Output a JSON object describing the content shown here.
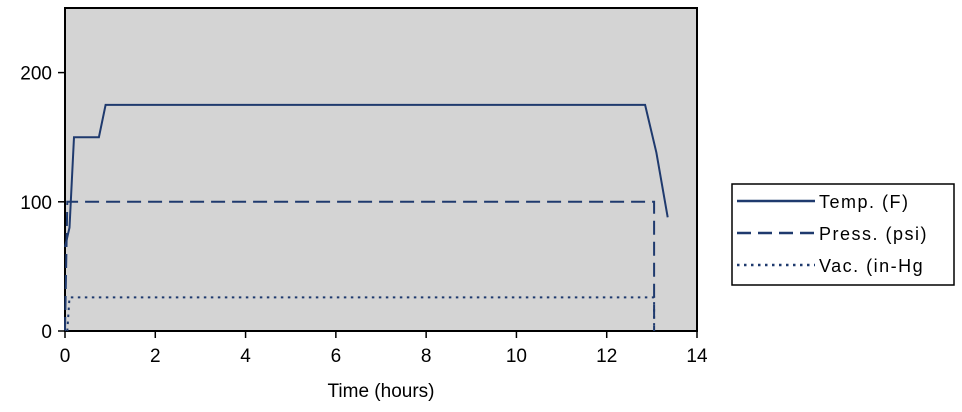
{
  "chart_data": {
    "type": "line",
    "title": "",
    "xlabel": "Time (hours)",
    "ylabel": "",
    "xlim": [
      0,
      14
    ],
    "ylim": [
      0,
      250
    ],
    "xticks": [
      0,
      2,
      4,
      6,
      8,
      10,
      12,
      14
    ],
    "yticks": [
      0,
      100,
      200
    ],
    "x_tick_labels": [
      "0",
      "2",
      "4",
      "6",
      "8",
      "10",
      "12",
      "14"
    ],
    "y_tick_labels": [
      "0",
      "100",
      "200"
    ],
    "grid": false,
    "plot_background": "#d4d4d4",
    "line_color": "#1f3a6e",
    "legend_position": "right",
    "series": [
      {
        "name": "Temp. (F)",
        "style": "solid",
        "points": [
          [
            0.0,
            65
          ],
          [
            0.1,
            80
          ],
          [
            0.2,
            150
          ],
          [
            0.75,
            150
          ],
          [
            0.9,
            175
          ],
          [
            12.85,
            175
          ],
          [
            13.1,
            138
          ],
          [
            13.35,
            88
          ]
        ]
      },
      {
        "name": "Press. (psi)",
        "style": "dashed",
        "points": [
          [
            0.0,
            0
          ],
          [
            0.05,
            100
          ],
          [
            13.05,
            100
          ],
          [
            13.05,
            0
          ]
        ]
      },
      {
        "name": "Vac. (in-Hg",
        "style": "dotted",
        "points": [
          [
            0.05,
            0
          ],
          [
            0.1,
            26
          ],
          [
            13.05,
            26
          ],
          [
            13.05,
            0
          ]
        ]
      }
    ]
  }
}
